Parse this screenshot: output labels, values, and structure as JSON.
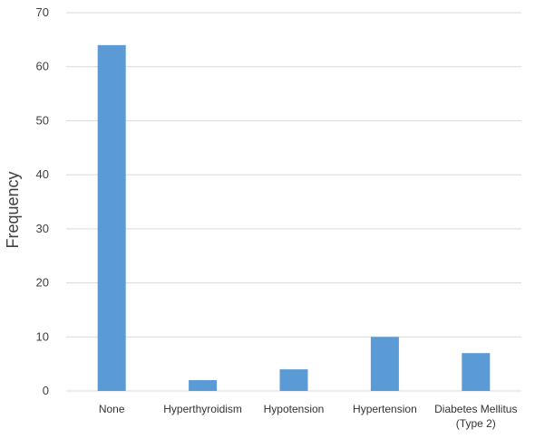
{
  "chart_data": {
    "type": "bar",
    "title": "",
    "xlabel": "",
    "ylabel": "Frequency",
    "categories": [
      [
        "None"
      ],
      [
        "Hyperthyroidism"
      ],
      [
        "Hypotension"
      ],
      [
        "Hypertension"
      ],
      [
        "Diabetes Mellitus",
        "(Type 2)"
      ]
    ],
    "values": [
      64,
      2,
      4,
      10,
      7
    ],
    "ylim": [
      0,
      70
    ],
    "yticks": [
      0,
      10,
      20,
      30,
      40,
      50,
      60,
      70
    ],
    "grid": true,
    "legend": "none",
    "colors": {
      "bar": "#5b9bd5",
      "grid": "#d9d9d9",
      "axis_text": "#404040",
      "label_text": "#333333"
    }
  }
}
